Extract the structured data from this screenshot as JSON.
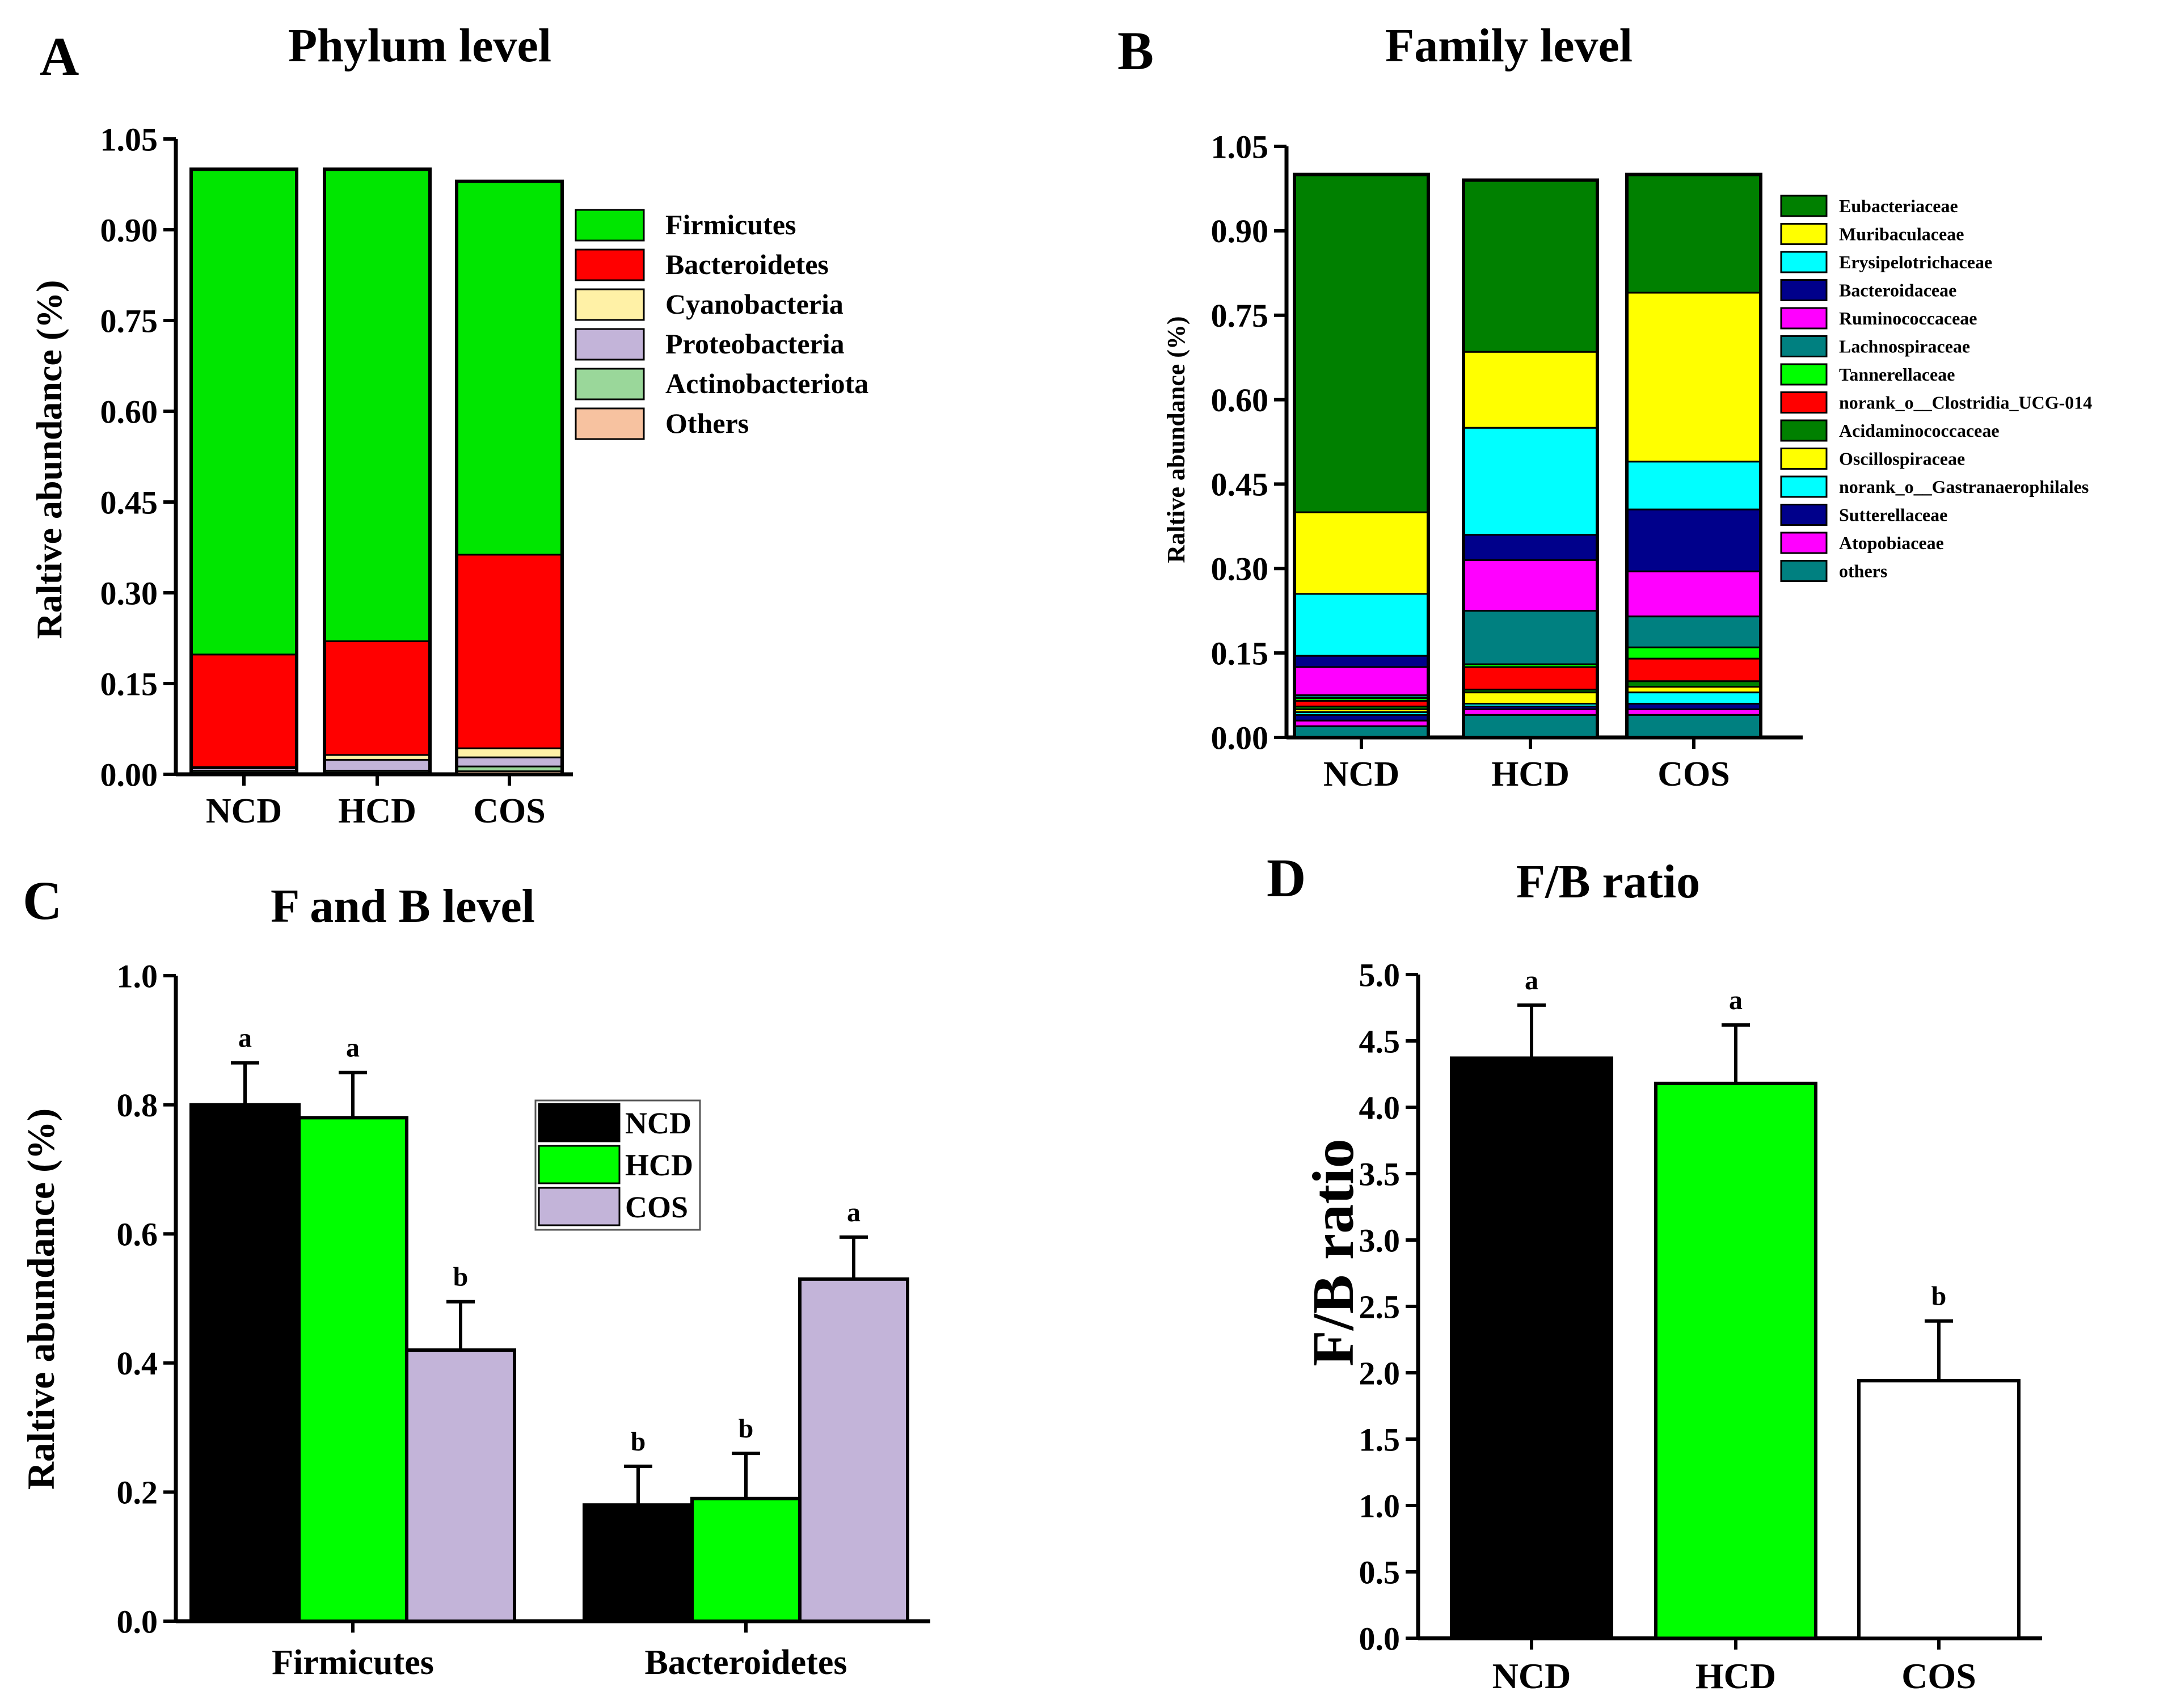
{
  "chart_data": [
    {
      "panel": "A",
      "type": "bar",
      "stacked": true,
      "title": "Phylum level",
      "xlabel": "",
      "ylabel": "Raltive abundance (%)",
      "ylim": [
        0,
        1.05
      ],
      "yticks": [
        "0.00",
        "0.15",
        "0.30",
        "0.45",
        "0.60",
        "0.75",
        "0.90",
        "1.05"
      ],
      "categories": [
        "NCD",
        "HCD",
        "COS"
      ],
      "series": [
        {
          "name": "Others",
          "color": "#f7c2a0",
          "values": [
            0.003,
            0.003,
            0.005
          ]
        },
        {
          "name": "Actinobacteriota",
          "color": "#9ad79a",
          "values": [
            0.003,
            0.003,
            0.008
          ]
        },
        {
          "name": "Proteobacteria",
          "color": "#c3b4d9",
          "values": [
            0.004,
            0.018,
            0.015
          ]
        },
        {
          "name": "Cyanobacteria",
          "color": "#fff1a6",
          "values": [
            0.002,
            0.008,
            0.015
          ]
        },
        {
          "name": "Bacteroidetes",
          "color": "#ff0000",
          "values": [
            0.186,
            0.188,
            0.32
          ]
        },
        {
          "name": "Firmicutes",
          "color": "#00e600",
          "values": [
            0.802,
            0.78,
            0.617
          ]
        }
      ],
      "legend": "top-right"
    },
    {
      "panel": "B",
      "type": "bar",
      "stacked": true,
      "title": "Family  level",
      "xlabel": "",
      "ylabel": "Raltive abundance (%)",
      "ylim": [
        0,
        1.05
      ],
      "yticks": [
        "0.00",
        "0.15",
        "0.30",
        "0.45",
        "0.60",
        "0.75",
        "0.90",
        "1.05"
      ],
      "categories": [
        "NCD",
        "HCD",
        "COS"
      ],
      "series": [
        {
          "name": "others",
          "color": "#008080",
          "values": [
            0.02,
            0.04,
            0.04
          ]
        },
        {
          "name": "Atopobiaceae",
          "color": "#ff00ff",
          "values": [
            0.01,
            0.01,
            0.01
          ]
        },
        {
          "name": "Sutterellaceae",
          "color": "#00008b",
          "values": [
            0.01,
            0.005,
            0.01
          ]
        },
        {
          "name": "norank_o__Gastranaerophilales",
          "color": "#00ffff",
          "values": [
            0.005,
            0.005,
            0.02
          ]
        },
        {
          "name": "Oscillospiraceae",
          "color": "#ffff00",
          "values": [
            0.005,
            0.02,
            0.01
          ]
        },
        {
          "name": "Acidaminococcaceae",
          "color": "#008000",
          "values": [
            0.005,
            0.005,
            0.01
          ]
        },
        {
          "name": "norank_o__Clostridia_UCG-014",
          "color": "#ff0000",
          "values": [
            0.01,
            0.04,
            0.04
          ]
        },
        {
          "name": "Tannerellaceae",
          "color": "#00ff00",
          "values": [
            0.005,
            0.005,
            0.02
          ]
        },
        {
          "name": "Lachnospiraceae",
          "color": "#008080",
          "values": [
            0.005,
            0.095,
            0.055
          ]
        },
        {
          "name": "Ruminococcaceae",
          "color": "#ff00ff",
          "values": [
            0.05,
            0.09,
            0.08
          ]
        },
        {
          "name": "Bacteroidaceae",
          "color": "#00008b",
          "values": [
            0.02,
            0.045,
            0.11
          ]
        },
        {
          "name": "Erysipelotrichaceae",
          "color": "#00ffff",
          "values": [
            0.11,
            0.19,
            0.085
          ]
        },
        {
          "name": "Muribaculaceae",
          "color": "#ffff00",
          "values": [
            0.145,
            0.135,
            0.3
          ]
        },
        {
          "name": "Eubacteriaceae",
          "color": "#008000",
          "values": [
            0.6,
            0.305,
            0.21
          ]
        }
      ],
      "legend": "right"
    },
    {
      "panel": "C",
      "type": "bar",
      "title": "F and B level",
      "xlabel": "",
      "ylabel": "Raltive abundance (%)",
      "ylim": [
        0,
        1.0
      ],
      "yticks": [
        "0.0",
        "0.2",
        "0.4",
        "0.6",
        "0.8",
        "1.0"
      ],
      "categories": [
        "Firmicutes",
        "Bacteroidetes"
      ],
      "series": [
        {
          "name": "NCD",
          "color": "#000000",
          "values": [
            0.8,
            0.18
          ],
          "errors": [
            0.065,
            0.06
          ],
          "letters": [
            "a",
            "b"
          ]
        },
        {
          "name": "HCD",
          "color": "#00ff00",
          "values": [
            0.78,
            0.19
          ],
          "errors": [
            0.07,
            0.07
          ],
          "letters": [
            "a",
            "b"
          ]
        },
        {
          "name": "COS",
          "color": "#c3b4d9",
          "values": [
            0.42,
            0.53
          ],
          "errors": [
            0.075,
            0.065
          ],
          "letters": [
            "b",
            "a"
          ]
        }
      ],
      "legend": "center"
    },
    {
      "panel": "D",
      "type": "bar",
      "title": "F/B ratio",
      "xlabel": "",
      "ylabel": "F/B ratio",
      "ylim": [
        0,
        5.0
      ],
      "yticks": [
        "0.0",
        "0.5",
        "1.0",
        "1.5",
        "2.0",
        "2.5",
        "3.0",
        "3.5",
        "4.0",
        "4.5",
        "5.0"
      ],
      "categories": [
        "NCD",
        "HCD",
        "COS"
      ],
      "colors": [
        "#000000",
        "#00ff00",
        "#ffffff"
      ],
      "values": [
        4.37,
        4.18,
        1.94
      ],
      "errors": [
        0.4,
        0.44,
        0.45
      ],
      "letters": [
        "a",
        "a",
        "b"
      ]
    }
  ]
}
